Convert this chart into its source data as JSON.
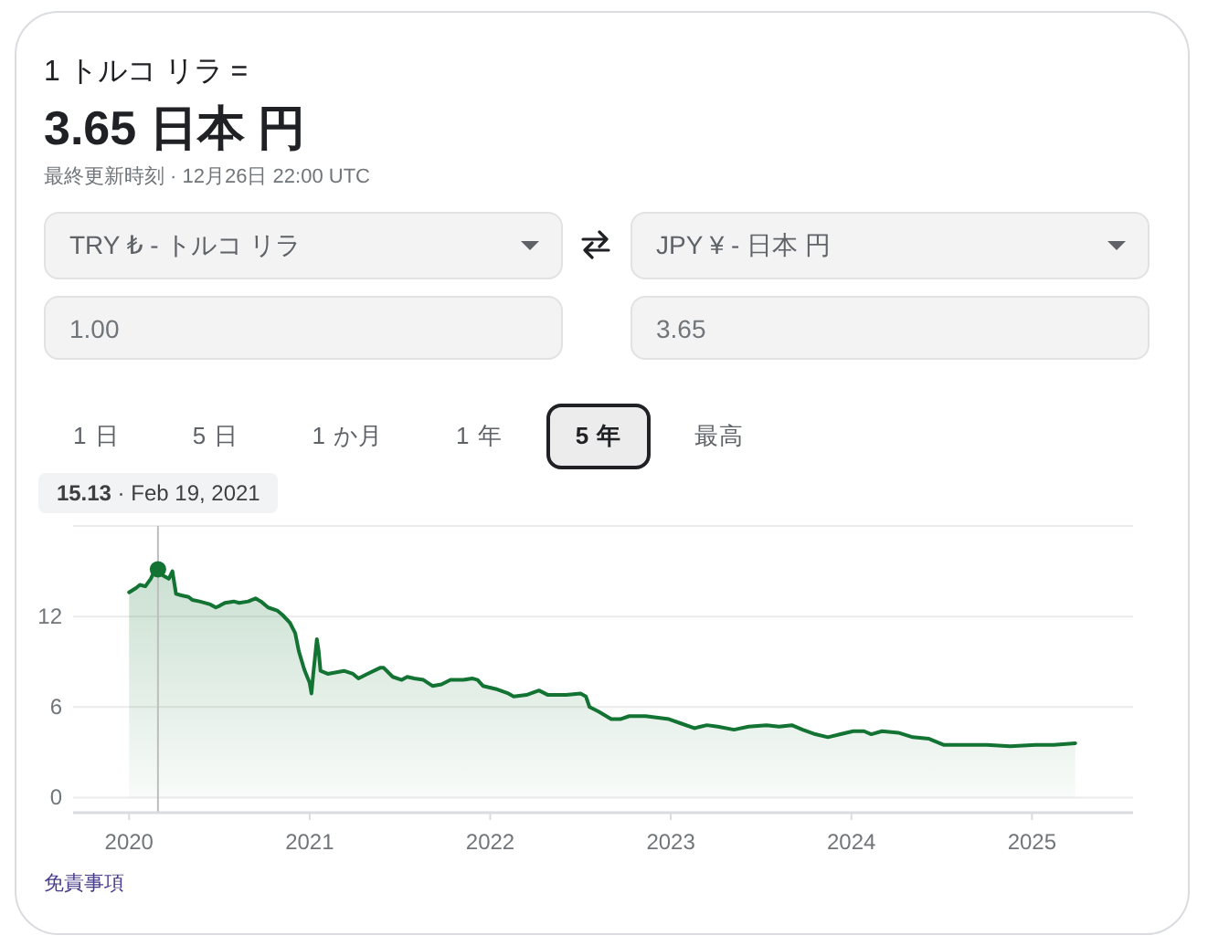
{
  "chart_data": {
    "type": "area",
    "title": "1 トルコ リラ =",
    "subtitle": "3.65 日本 円",
    "annotations": [
      "最終更新時刻 · 12月26日 22:00 UTC",
      "TRY ₺ - トルコ リラ",
      "JPY ¥ - 日本 円",
      "1.00",
      "3.65",
      "1 日",
      "5 日",
      "1 か月",
      "1 年",
      "5 年",
      "最高",
      {
        "text": "**15.13** · Feb 19, 2021",
        "x": 2020.16,
        "y": 15.13
      },
      "免責事項"
    ],
    "x": [
      2020.0,
      2020.04,
      2020.06,
      2020.09,
      2020.12,
      2020.14,
      2020.16,
      2020.19,
      2020.22,
      2020.24,
      2020.26,
      2020.29,
      2020.33,
      2020.35,
      2020.39,
      2020.45,
      2020.48,
      2020.5,
      2020.53,
      2020.58,
      2020.61,
      2020.66,
      2020.7,
      2020.73,
      2020.77,
      2020.82,
      2020.85,
      2020.89,
      2020.92,
      2020.94,
      2020.97,
      2020.98,
      2021.0,
      2021.01,
      2021.02,
      2021.04,
      2021.05,
      2021.06,
      2021.1,
      2021.19,
      2021.24,
      2021.27,
      2021.32,
      2021.39,
      2021.41,
      2021.46,
      2021.51,
      2021.54,
      2021.58,
      2021.63,
      2021.68,
      2021.73,
      2021.78,
      2021.85,
      2021.9,
      2021.93,
      2021.96,
      2022.03,
      2022.1,
      2022.13,
      2022.2,
      2022.27,
      2022.32,
      2022.42,
      2022.5,
      2022.53,
      2022.55,
      2022.6,
      2022.67,
      2022.72,
      2022.77,
      2022.86,
      2022.99,
      2023.06,
      2023.13,
      2023.2,
      2023.26,
      2023.35,
      2023.43,
      2023.53,
      2023.6,
      2023.67,
      2023.73,
      2023.8,
      2023.87,
      2023.94,
      2024.01,
      2024.07,
      2024.11,
      2024.17,
      2024.26,
      2024.34,
      2024.43,
      2024.51,
      2024.61,
      2024.75,
      2024.88,
      2025.02,
      2025.12,
      2025.24
    ],
    "values": [
      13.6,
      13.9,
      14.1,
      14.0,
      14.5,
      15.0,
      15.13,
      14.7,
      14.5,
      15.0,
      13.5,
      13.4,
      13.3,
      13.1,
      13.0,
      12.8,
      12.6,
      12.7,
      12.9,
      13.0,
      12.9,
      13.0,
      13.2,
      13.0,
      12.6,
      12.4,
      12.1,
      11.6,
      10.9,
      9.7,
      8.5,
      8.2,
      7.6,
      6.9,
      8.2,
      10.5,
      9.7,
      8.4,
      8.2,
      8.4,
      8.2,
      7.9,
      8.2,
      8.6,
      8.6,
      8.0,
      7.8,
      8.0,
      7.9,
      7.8,
      7.4,
      7.5,
      7.8,
      7.8,
      7.9,
      7.8,
      7.4,
      7.2,
      6.9,
      6.7,
      6.8,
      7.1,
      6.8,
      6.8,
      6.9,
      6.7,
      6.0,
      5.7,
      5.2,
      5.2,
      5.4,
      5.4,
      5.2,
      4.9,
      4.6,
      4.8,
      4.7,
      4.5,
      4.7,
      4.8,
      4.7,
      4.8,
      4.5,
      4.2,
      4.0,
      4.2,
      4.4,
      4.4,
      4.2,
      4.4,
      4.3,
      4.0,
      3.9,
      3.5,
      3.5,
      3.5,
      3.4,
      3.5,
      3.5,
      3.6
    ],
    "color": "#137333",
    "xlim": [
      2019.69,
      2025.56
    ],
    "ylim": [
      -1,
      18
    ],
    "xticks": [
      2020,
      2021,
      2022,
      2023,
      2024,
      2025
    ],
    "yticks": [
      0,
      6,
      12,
      {
        "value": 18,
        "label": null
      }
    ],
    "grid": "y",
    "ref_lines": [
      {
        "axis": "x",
        "value": 2020.16,
        "color": "#bdbdbd"
      }
    ]
  }
}
